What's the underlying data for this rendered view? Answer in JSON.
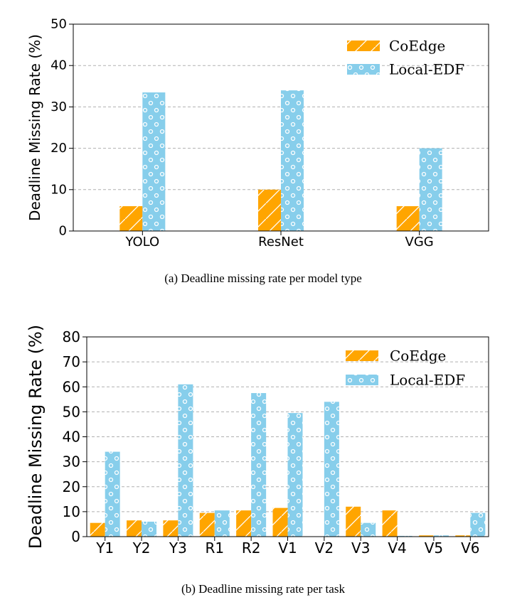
{
  "colors": {
    "coedge": "#FFA500",
    "localedf": "#87CEEB",
    "grid": "#b0b0b0"
  },
  "chart_data": [
    {
      "type": "bar",
      "categories": [
        "YOLO",
        "ResNet",
        "VGG"
      ],
      "series": [
        {
          "name": "CoEdge",
          "values": [
            6,
            10,
            6
          ]
        },
        {
          "name": "Local-EDF",
          "values": [
            33.5,
            34,
            20
          ]
        }
      ],
      "ylabel": "Deadline Missing Rate (%)",
      "xlabel": "",
      "ylim": [
        0,
        50
      ],
      "yticks": [
        0,
        10,
        20,
        30,
        40,
        50
      ],
      "grid": "y-dashed",
      "legend": "top-right",
      "caption": "(a)  Deadline missing rate per model type"
    },
    {
      "type": "bar",
      "categories": [
        "Y1",
        "Y2",
        "Y3",
        "R1",
        "R2",
        "V1",
        "V2",
        "V3",
        "V4",
        "V5",
        "V6"
      ],
      "series": [
        {
          "name": "CoEdge",
          "values": [
            5.5,
            6.5,
            6.5,
            9.5,
            10.5,
            11.5,
            0,
            12,
            10.5,
            0.5,
            0.5
          ]
        },
        {
          "name": "Local-EDF",
          "values": [
            34,
            6,
            61,
            10.5,
            57.5,
            49.5,
            54,
            5.5,
            0.3,
            0.5,
            9.5
          ]
        }
      ],
      "ylabel": "Deadline Missing Rate (%)",
      "xlabel": "",
      "ylim": [
        0,
        80
      ],
      "yticks": [
        0,
        10,
        20,
        30,
        40,
        50,
        60,
        70,
        80
      ],
      "grid": "y-dashed",
      "legend": "top-right",
      "caption": "(b)  Deadline missing rate per task"
    }
  ]
}
